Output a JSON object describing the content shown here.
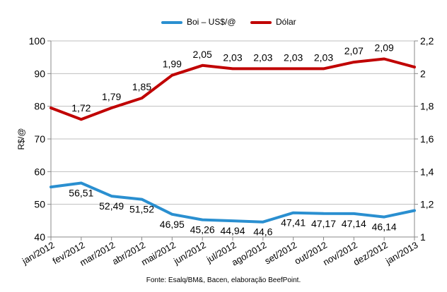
{
  "chart_data": {
    "type": "line",
    "categories": [
      "jan/2012",
      "fev/2012",
      "mar/2012",
      "abr/2012",
      "mai/2012",
      "jun/2012",
      "jul/2012",
      "ago/2012",
      "set/2012",
      "out/2012",
      "nov/2012",
      "dez/2012",
      "jan/2013"
    ],
    "series": [
      {
        "name": "Boi – US$/@",
        "axis": "left",
        "color": "#2a8fd0",
        "values": [
          55.3,
          56.51,
          52.49,
          51.52,
          46.95,
          45.26,
          44.94,
          44.6,
          47.41,
          47.17,
          47.14,
          46.14,
          48.1
        ],
        "labels": [
          "",
          "56,51",
          "52,49",
          "51,52",
          "46,95",
          "45,26",
          "44,94",
          "44,6",
          "47,41",
          "47,17",
          "47,14",
          "46,14",
          ""
        ]
      },
      {
        "name": "Dólar",
        "axis": "right",
        "color": "#c00000",
        "values": [
          1.79,
          1.72,
          1.79,
          1.85,
          1.99,
          2.05,
          2.03,
          2.03,
          2.03,
          2.03,
          2.07,
          2.09,
          2.04
        ],
        "labels": [
          "",
          "1,72",
          "1,79",
          "1,85",
          "1,99",
          "2,05",
          "2,03",
          "2,03",
          "2,03",
          "2,03",
          "2,07",
          "2,09",
          ""
        ]
      }
    ],
    "ylabel": "R$/@",
    "ylim": [
      40,
      100
    ],
    "yticks": [
      "40",
      "50",
      "60",
      "70",
      "80",
      "90",
      "100"
    ],
    "y2lim": [
      1,
      2.2
    ],
    "y2ticks": [
      "1",
      "1,2",
      "1,4",
      "1,6",
      "1,8",
      "2",
      "2,2"
    ],
    "grid": true,
    "legend": "top-center",
    "source": "Fonte: Esalq/BM&, Bacen, elaboração BeefPoint."
  }
}
